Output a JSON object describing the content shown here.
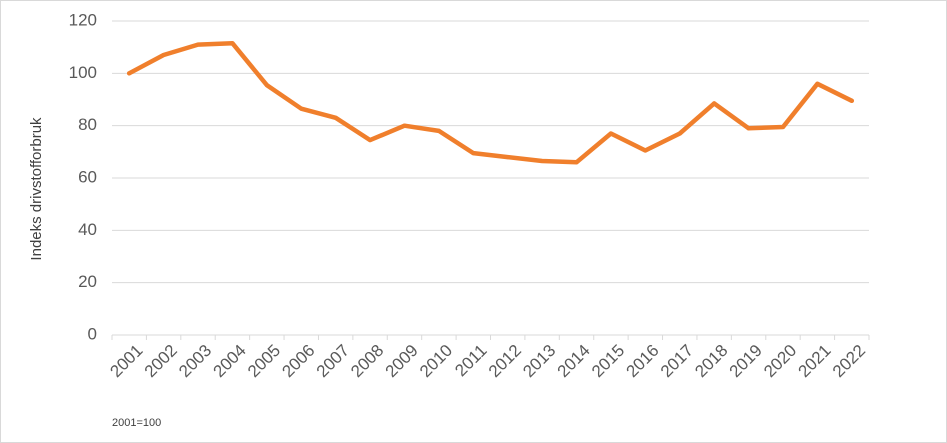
{
  "chart_data": {
    "type": "line",
    "title": "",
    "xlabel": "",
    "ylabel": "Indeks drivstofforbruk",
    "ylim": [
      0,
      120
    ],
    "yticks": [
      0,
      20,
      40,
      60,
      80,
      100,
      120
    ],
    "grid": "horizontal",
    "categories": [
      "2001",
      "2002",
      "2003",
      "2004",
      "2005",
      "2006",
      "2007",
      "2008",
      "2009",
      "2010",
      "2011",
      "2012",
      "2013",
      "2014",
      "2015",
      "2016",
      "2017",
      "2018",
      "2019",
      "2020",
      "2021",
      "2022"
    ],
    "series": [
      {
        "color": "#f07f2c",
        "values": [
          100,
          107,
          111,
          111.5,
          95.5,
          86.5,
          83,
          74.5,
          80,
          78,
          69.5,
          68,
          66.5,
          66,
          77,
          70.5,
          77,
          88.5,
          79,
          79.5,
          96,
          89.5
        ]
      }
    ],
    "footnote": "2001=100"
  }
}
